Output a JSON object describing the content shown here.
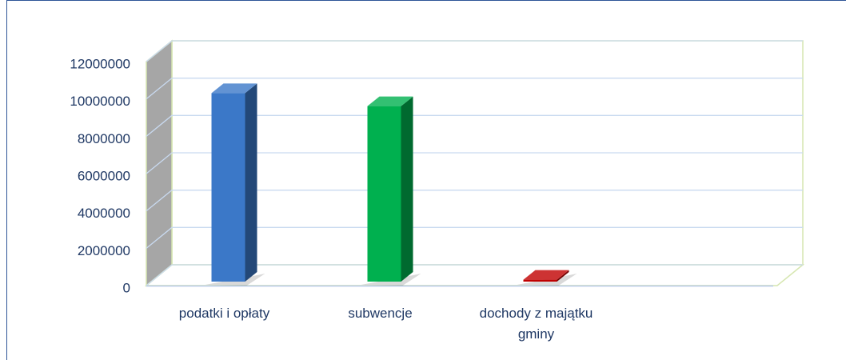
{
  "chart_data": {
    "type": "bar3d",
    "categories": [
      "podatki i opłaty",
      "subwencje",
      "dochody z majątku gminy"
    ],
    "values": [
      10100000,
      9400000,
      100000
    ],
    "colors": [
      "#3b78c8",
      "#00b04f",
      "#c00000"
    ],
    "ylim": [
      0,
      12000000
    ],
    "yticks": [
      0,
      2000000,
      4000000,
      6000000,
      8000000,
      10000000,
      12000000
    ],
    "grid": true
  }
}
